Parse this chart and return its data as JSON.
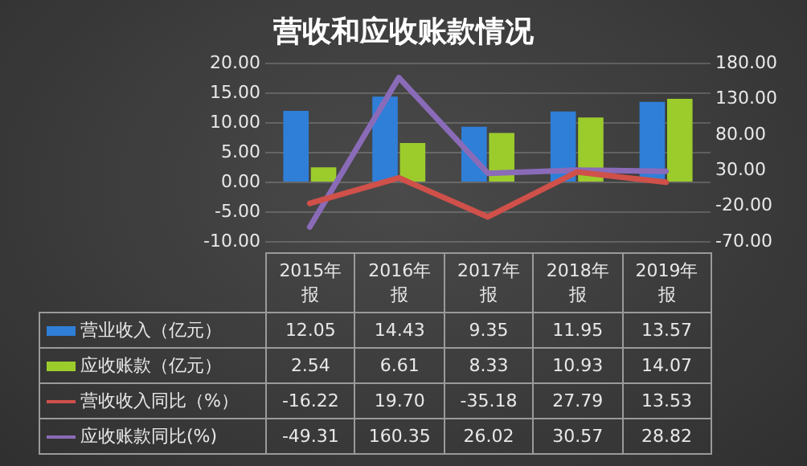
{
  "chart_data": {
    "type": "bar",
    "title": "营收和应收账款情况",
    "categories": [
      "2015年报",
      "2016年报",
      "2017年报",
      "2018年报",
      "2019年报"
    ],
    "series": [
      {
        "name": "营业收入（亿元）",
        "color": "#2f7fd8",
        "values": [
          12.05,
          14.43,
          9.35,
          11.95,
          13.57
        ],
        "value_labels": [
          "12.05",
          "14.43",
          "9.35",
          "11.95",
          "13.57"
        ]
      },
      {
        "name": "应收账款（亿元）",
        "color": "#9ccc2c",
        "values": [
          2.54,
          6.61,
          8.33,
          10.93,
          14.07
        ],
        "value_labels": [
          "2.54",
          "6.61",
          "8.33",
          "10.93",
          "14.07"
        ]
      },
      {
        "name": "营收收入同比（%）",
        "type": "line",
        "axis": "y2",
        "color": "#d0504a",
        "values": [
          -16.22,
          19.7,
          -35.18,
          27.79,
          13.53
        ],
        "value_labels": [
          "-16.22",
          "19.70",
          "-35.18",
          "27.79",
          "13.53"
        ]
      },
      {
        "name": "应收账款同比(%)",
        "type": "line",
        "axis": "y2",
        "color": "#8a6bb8",
        "values": [
          -49.31,
          160.35,
          26.02,
          30.57,
          28.82
        ],
        "value_labels": [
          "-49.31",
          "160.35",
          "26.02",
          "30.57",
          "28.82"
        ]
      }
    ],
    "ylim": [
      -10,
      20
    ],
    "yticks": [
      {
        "value": -10,
        "label": "-10.00"
      },
      {
        "value": -5,
        "label": "-5.00"
      },
      {
        "value": 0,
        "label": "0.00"
      },
      {
        "value": 5,
        "label": "5.00"
      },
      {
        "value": 10,
        "label": "10.00"
      },
      {
        "value": 15,
        "label": "15.00"
      },
      {
        "value": 20,
        "label": "20.00"
      }
    ],
    "y2lim": [
      -70,
      180
    ],
    "y2ticks": [
      {
        "value": -70,
        "label": "-70.00"
      },
      {
        "value": -20,
        "label": "-20.00"
      },
      {
        "value": 30,
        "label": "30.00"
      },
      {
        "value": 80,
        "label": "80.00"
      },
      {
        "value": 130,
        "label": "130.00"
      },
      {
        "value": 180,
        "label": "180.00"
      }
    ],
    "grid": "y",
    "legend": "bottom",
    "marker": "none"
  }
}
